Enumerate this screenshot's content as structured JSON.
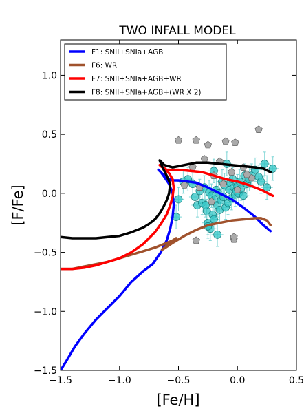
{
  "chart_data": {
    "type": "line",
    "title": "TWO INFALL MODEL",
    "xlabel": "[Fe/H]",
    "ylabel": "[F/Fe]",
    "xlim": [
      -1.5,
      0.5
    ],
    "ylim": [
      -1.5,
      1.3
    ],
    "xticks": [
      -1.5,
      -1.0,
      -0.5,
      0.0,
      0.5
    ],
    "xtick_labels": [
      "−1.5",
      "−1.0",
      "−0.5",
      "0.0",
      "0.5"
    ],
    "yticks": [
      -1.5,
      -1.0,
      -0.5,
      0.0,
      0.5,
      1.0
    ],
    "ytick_labels": [
      "−1.5",
      "−1.0",
      "−0.5",
      "0.0",
      "0.5",
      "1.0"
    ],
    "grid": false,
    "legend": {
      "placement": "top-left"
    },
    "series": [
      {
        "name": "F1: SNII+SNIa+AGB",
        "color": "#0000ff",
        "x": [
          -1.5,
          -1.45,
          -1.38,
          -1.3,
          -1.2,
          -1.1,
          -1.0,
          -0.9,
          -0.8,
          -0.72,
          -0.65,
          -0.6,
          -0.57,
          -0.55,
          -0.54,
          -0.55,
          -0.58,
          -0.62,
          -0.65,
          -0.67,
          -0.66,
          -0.62,
          -0.58,
          -0.55,
          -0.5,
          -0.42,
          -0.35,
          -0.25,
          -0.15,
          -0.05,
          0.05,
          0.15,
          0.22,
          0.28
        ],
        "y": [
          -1.5,
          -1.42,
          -1.3,
          -1.19,
          -1.07,
          -0.97,
          -0.87,
          -0.75,
          -0.66,
          -0.6,
          -0.5,
          -0.4,
          -0.3,
          -0.2,
          -0.1,
          0.0,
          0.08,
          0.14,
          0.18,
          0.2,
          0.19,
          0.15,
          0.12,
          0.11,
          0.11,
          0.1,
          0.09,
          0.05,
          0.0,
          -0.05,
          -0.12,
          -0.2,
          -0.27,
          -0.32
        ]
      },
      {
        "name": "F6: WR",
        "color": "#a0522d",
        "x": [
          -1.5,
          -1.4,
          -1.3,
          -1.2,
          -1.1,
          -1.0,
          -0.9,
          -0.8,
          -0.7,
          -0.65,
          -0.6,
          -0.55,
          -0.52,
          -0.55,
          -0.6,
          -0.64,
          -0.55,
          -0.45,
          -0.35,
          -0.25,
          -0.15,
          -0.05,
          0.05,
          0.15,
          0.2,
          0.25,
          0.28
        ],
        "y": [
          -0.64,
          -0.64,
          -0.62,
          -0.6,
          -0.58,
          -0.55,
          -0.52,
          -0.49,
          -0.46,
          -0.44,
          -0.42,
          -0.4,
          -0.38,
          -0.4,
          -0.44,
          -0.48,
          -0.42,
          -0.36,
          -0.31,
          -0.27,
          -0.25,
          -0.23,
          -0.22,
          -0.21,
          -0.21,
          -0.23,
          -0.27
        ]
      },
      {
        "name": "F7: SNII+SNIa+AGB+WR",
        "color": "#ff0000",
        "x": [
          -1.5,
          -1.4,
          -1.3,
          -1.2,
          -1.1,
          -1.0,
          -0.9,
          -0.8,
          -0.75,
          -0.7,
          -0.65,
          -0.6,
          -0.57,
          -0.55,
          -0.54,
          -0.55,
          -0.58,
          -0.62,
          -0.65,
          -0.66,
          -0.6,
          -0.5,
          -0.4,
          -0.3,
          -0.2,
          -0.1,
          0.0,
          0.1,
          0.2,
          0.3
        ],
        "y": [
          -0.64,
          -0.64,
          -0.63,
          -0.61,
          -0.58,
          -0.55,
          -0.5,
          -0.43,
          -0.38,
          -0.33,
          -0.26,
          -0.18,
          -0.1,
          -0.03,
          0.05,
          0.12,
          0.17,
          0.21,
          0.23,
          0.24,
          0.2,
          0.2,
          0.19,
          0.18,
          0.15,
          0.12,
          0.1,
          0.07,
          0.03,
          -0.02
        ]
      },
      {
        "name": "F8: SNII+SNIa+AGB+(WR X 2)",
        "color": "#000000",
        "x": [
          -1.5,
          -1.4,
          -1.3,
          -1.2,
          -1.1,
          -1.0,
          -0.9,
          -0.85,
          -0.8,
          -0.75,
          -0.7,
          -0.66,
          -0.63,
          -0.6,
          -0.58,
          -0.57,
          -0.6,
          -0.64,
          -0.66,
          -0.62,
          -0.55,
          -0.45,
          -0.35,
          -0.25,
          -0.15,
          -0.05,
          0.05,
          0.15,
          0.22,
          0.28
        ],
        "y": [
          -0.37,
          -0.38,
          -0.38,
          -0.38,
          -0.37,
          -0.36,
          -0.33,
          -0.31,
          -0.29,
          -0.26,
          -0.22,
          -0.17,
          -0.12,
          -0.06,
          0.0,
          0.08,
          0.15,
          0.23,
          0.28,
          0.24,
          0.22,
          0.24,
          0.26,
          0.26,
          0.25,
          0.24,
          0.23,
          0.22,
          0.21,
          0.18
        ]
      }
    ],
    "observations_cyan": {
      "color": "#2ec4c4",
      "marker": "circle with error bars",
      "x": [
        -0.52,
        -0.5,
        -0.46,
        -0.42,
        -0.38,
        -0.36,
        -0.34,
        -0.32,
        -0.3,
        -0.28,
        -0.26,
        -0.25,
        -0.24,
        -0.22,
        -0.21,
        -0.2,
        -0.19,
        -0.18,
        -0.17,
        -0.16,
        -0.15,
        -0.14,
        -0.13,
        -0.12,
        -0.11,
        -0.1,
        -0.09,
        -0.08,
        -0.07,
        -0.06,
        -0.05,
        -0.04,
        -0.03,
        -0.02,
        -0.01,
        0.0,
        0.01,
        0.02,
        0.03,
        0.05,
        0.06,
        0.08,
        0.1,
        0.12,
        0.15,
        0.18,
        0.2,
        0.23,
        0.25,
        0.3,
        -0.27,
        -0.23,
        -0.2,
        -0.25,
        -0.17
      ],
      "y": [
        -0.2,
        -0.05,
        0.1,
        0.12,
        0.08,
        -0.03,
        -0.1,
        0.02,
        -0.08,
        0.05,
        -0.15,
        -0.25,
        0.01,
        -0.02,
        -0.18,
        0.19,
        -0.05,
        0.03,
        -0.1,
        0.0,
        -0.14,
        -0.06,
        0.1,
        -0.03,
        0.07,
        -0.12,
        0.25,
        -0.08,
        0.03,
        0.09,
        -0.04,
        0.12,
        0.05,
        -0.01,
        0.02,
        0.06,
        0.0,
        0.1,
        0.04,
        -0.02,
        0.15,
        0.08,
        0.12,
        0.15,
        0.2,
        0.14,
        0.1,
        0.25,
        0.05,
        0.21,
        -0.1,
        -0.3,
        -0.22,
        -0.28,
        -0.35
      ],
      "err_y": 0.1,
      "err_x": 0.05
    },
    "observations_grey": {
      "color": "#aaaaaa",
      "marker": "pentagon",
      "x": [
        -0.5,
        -0.35,
        -0.25,
        -0.1,
        -0.02,
        0.18,
        -0.38,
        -0.28,
        -0.2,
        -0.12,
        0.0,
        0.05,
        0.12,
        -0.32,
        -0.15,
        -0.05,
        -0.45,
        0.08,
        -0.22,
        -0.03,
        -0.35,
        -0.03
      ],
      "y": [
        0.45,
        0.45,
        0.41,
        0.44,
        0.43,
        0.54,
        0.22,
        0.29,
        0.15,
        0.08,
        0.03,
        0.22,
        0.13,
        0.05,
        0.27,
        0.18,
        0.07,
        0.16,
        -0.07,
        -0.39,
        -0.4,
        -0.37
      ]
    }
  }
}
